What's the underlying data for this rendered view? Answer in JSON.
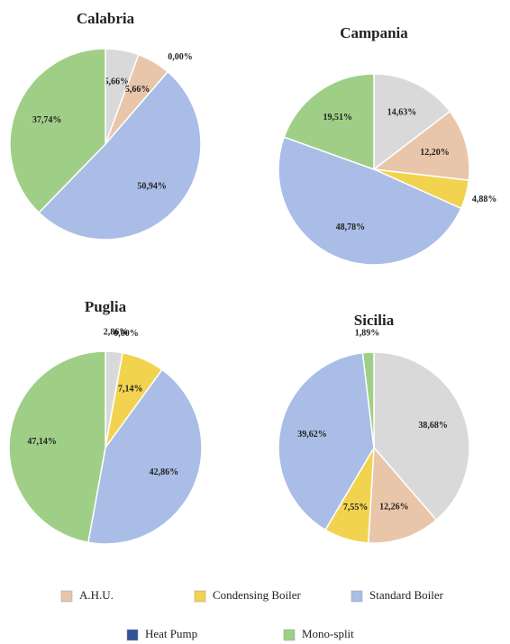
{
  "chart_data": [
    {
      "type": "pie",
      "title": "Calabria",
      "values": [
        5.66,
        5.66,
        0,
        50.94,
        37.74
      ],
      "value_labels": [
        "5,66%",
        "5,66%",
        "0,00%",
        "50,94%",
        "37,74%"
      ],
      "colors": [
        "#d9d9d9",
        "#e9c6aa",
        "#f2d34f",
        "#a9bde6",
        "#9fcf86"
      ]
    },
    {
      "type": "pie",
      "title": "Campania",
      "values": [
        14.63,
        12.2,
        4.88,
        48.78,
        19.51
      ],
      "value_labels": [
        "14,63%",
        "12,20%",
        "4,88%",
        "48,78%",
        "19,51%"
      ],
      "colors": [
        "#d9d9d9",
        "#e9c6aa",
        "#f2d34f",
        "#a9bde6",
        "#9fcf86"
      ]
    },
    {
      "type": "pie",
      "title": "Puglia",
      "values": [
        2.86,
        0,
        7.14,
        42.86,
        47.14
      ],
      "value_labels": [
        "2,86%",
        "0,00%",
        "7,14%",
        "42,86%",
        "47,14%"
      ],
      "colors": [
        "#d9d9d9",
        "#e9c6aa",
        "#f2d34f",
        "#a9bde6",
        "#9fcf86"
      ]
    },
    {
      "type": "pie",
      "title": "Sicilia",
      "values": [
        38.68,
        12.26,
        7.55,
        39.62,
        1.89
      ],
      "value_labels": [
        "38,68%",
        "12,26%",
        "7,55%",
        "39,62%",
        "1,89%"
      ],
      "colors": [
        "#d9d9d9",
        "#e9c6aa",
        "#f2d34f",
        "#a9bde6",
        "#9fcf86"
      ]
    }
  ],
  "legend": [
    {
      "name": "A.H.U.",
      "color": "#e9c6aa"
    },
    {
      "name": "Condensing Boiler",
      "color": "#f2d34f"
    },
    {
      "name": "Standard Boiler",
      "color": "#a9bde6"
    },
    {
      "name": "Heat Pump",
      "color": "#2f5597"
    },
    {
      "name": "Mono-split",
      "color": "#9fcf86"
    }
  ]
}
